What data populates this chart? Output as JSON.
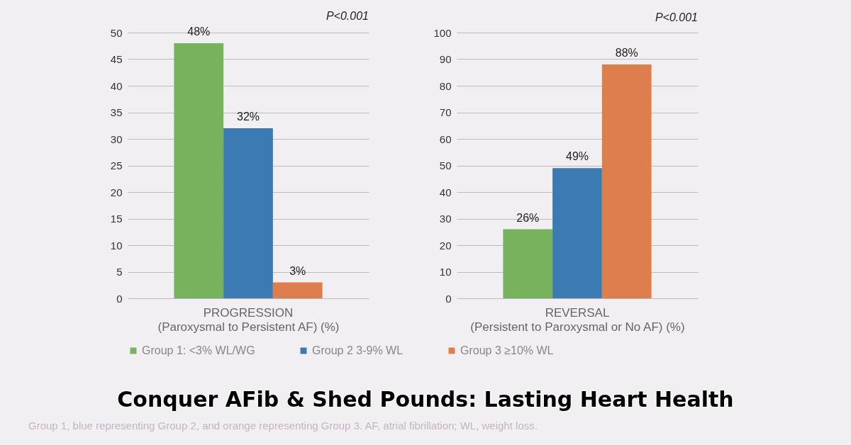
{
  "chart_data": [
    {
      "type": "bar",
      "categories": [
        "PROGRESSION"
      ],
      "xlabel": "(Paroxysmal to Persistent AF) (%)",
      "ylim": [
        0,
        50
      ],
      "yticks": [
        0,
        5,
        10,
        15,
        20,
        25,
        30,
        35,
        40,
        45,
        50
      ],
      "grid": "y",
      "legend": "bottom",
      "annotations": [
        "P<0.001"
      ],
      "series": [
        {
          "name": "Group 1: <3% WL/WG",
          "color": "#77b35c",
          "values": [
            48
          ],
          "value_labels": [
            "48%"
          ]
        },
        {
          "name": "Group 2 3-9% WL",
          "color": "#3b7ab3",
          "values": [
            32
          ],
          "value_labels": [
            "32%"
          ]
        },
        {
          "name": "Group 3 ≥10% WL",
          "color": "#de7e4c",
          "values": [
            3
          ],
          "value_labels": [
            "3%"
          ]
        }
      ]
    },
    {
      "type": "bar",
      "categories": [
        "REVERSAL"
      ],
      "xlabel": "(Persistent to Paroxysmal or No AF) (%)",
      "ylim": [
        0,
        100
      ],
      "yticks": [
        0,
        10,
        20,
        30,
        40,
        50,
        60,
        70,
        80,
        90,
        100
      ],
      "grid": "y",
      "legend": "bottom",
      "annotations": [
        "P<0.001",
        "Conquer AFib & Shed Pounds: Lasting Heart Health",
        "Group 1, blue representing Group 2, and orange representing Group 3. AF, atrial fibrillation; WL, weight loss."
      ],
      "series": [
        {
          "name": "Group 1: <3% WL/WG",
          "color": "#77b35c",
          "values": [
            26
          ],
          "value_labels": [
            "26%"
          ]
        },
        {
          "name": "Group 2 3-9% WL",
          "color": "#3b7ab3",
          "values": [
            49
          ],
          "value_labels": [
            "49%"
          ]
        },
        {
          "name": "Group 3 ≥10% WL",
          "color": "#de7e4c",
          "values": [
            88
          ],
          "value_labels": [
            "88%"
          ]
        }
      ]
    }
  ]
}
